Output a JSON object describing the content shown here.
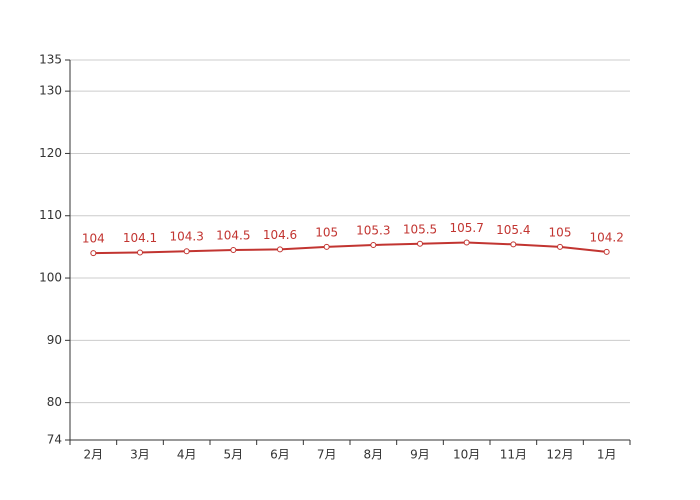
{
  "chart_data": {
    "type": "line",
    "categories": [
      "2月",
      "3月",
      "4月",
      "5月",
      "6月",
      "7月",
      "8月",
      "9月",
      "10月",
      "11月",
      "12月",
      "1月"
    ],
    "values": [
      104,
      104.1,
      104.3,
      104.5,
      104.6,
      105,
      105.3,
      105.5,
      105.7,
      105.4,
      105,
      104.2
    ],
    "color": "#c23531",
    "ylim": [
      74,
      135
    ],
    "yticks": [
      74,
      80,
      90,
      100,
      110,
      120,
      130,
      135
    ],
    "grid": true
  }
}
